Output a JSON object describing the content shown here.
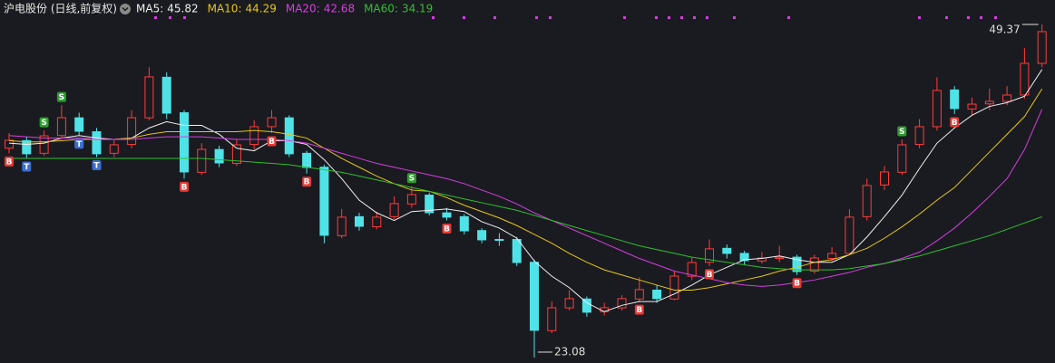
{
  "chart_data": {
    "type": "candlestick",
    "title": "沪电股份 (日线,前复权)",
    "up_color": "#ff3b3b",
    "down_color": "#4fe3e8",
    "ylim": [
      22.65,
      49.87
    ],
    "open": [
      39.6,
      40.2,
      39.2,
      40.6,
      42.0,
      40.9,
      39.2,
      39.9,
      42.0,
      45.2,
      42.4,
      37.7,
      39.5,
      38.4,
      39.9,
      41.3,
      42.0,
      39.2,
      38.1,
      32.7,
      34.2,
      33.4,
      34.2,
      35.2,
      35.9,
      34.5,
      34.2,
      33.1,
      32.4,
      32.4,
      30.6,
      25.2,
      27.0,
      27.7,
      26.7,
      27.0,
      27.7,
      28.4,
      27.7,
      29.5,
      30.6,
      31.7,
      31.3,
      30.7,
      30.9,
      31.0,
      29.9,
      30.9,
      31.3,
      34.2,
      36.7,
      37.7,
      39.9,
      41.3,
      44.2,
      42.7,
      43.1,
      43.3,
      43.8,
      46.3
    ],
    "high": [
      40.8,
      40.5,
      41.0,
      43.0,
      42.4,
      41.2,
      40.3,
      42.6,
      46.0,
      45.6,
      42.6,
      40.0,
      39.8,
      40.3,
      41.8,
      42.6,
      42.2,
      39.4,
      38.3,
      34.8,
      34.5,
      34.6,
      35.8,
      36.6,
      36.1,
      34.9,
      34.4,
      33.3,
      32.9,
      32.6,
      30.8,
      27.5,
      28.4,
      27.9,
      27.4,
      28.0,
      29.4,
      28.8,
      29.9,
      31.0,
      32.4,
      32.0,
      31.5,
      31.4,
      31.9,
      31.2,
      31.2,
      31.8,
      34.8,
      37.2,
      38.2,
      40.3,
      41.9,
      45.2,
      44.5,
      43.6,
      44.3,
      44.5,
      47.5,
      49.37
    ],
    "low": [
      39.2,
      38.8,
      39.0,
      40.3,
      40.6,
      38.9,
      38.9,
      39.6,
      41.8,
      41.9,
      37.2,
      37.5,
      38.1,
      38.2,
      39.5,
      40.8,
      38.9,
      37.6,
      32.1,
      32.5,
      33.1,
      33.2,
      34.0,
      34.9,
      34.3,
      33.9,
      32.8,
      32.1,
      31.9,
      30.3,
      23.08,
      25.0,
      26.8,
      26.3,
      26.4,
      26.8,
      27.5,
      27.4,
      27.6,
      29.2,
      30.3,
      30.9,
      30.4,
      30.5,
      30.6,
      29.6,
      29.7,
      30.7,
      31.2,
      33.9,
      36.3,
      37.5,
      39.6,
      41.0,
      42.3,
      42.2,
      42.6,
      43.0,
      43.5,
      46.0
    ],
    "close": [
      40.23,
      39.16,
      40.58,
      42.01,
      40.94,
      39.16,
      39.87,
      42.01,
      45.23,
      42.37,
      37.73,
      39.51,
      38.44,
      39.87,
      41.3,
      42.01,
      39.16,
      38.08,
      32.73,
      34.16,
      33.44,
      34.16,
      35.23,
      35.94,
      34.51,
      34.16,
      33.08,
      32.37,
      32.37,
      30.58,
      25.23,
      27.01,
      27.73,
      26.66,
      27.01,
      27.73,
      28.44,
      27.73,
      29.51,
      30.58,
      31.66,
      31.3,
      30.73,
      30.94,
      31.0,
      29.87,
      30.94,
      31.3,
      34.16,
      36.66,
      37.73,
      39.87,
      41.3,
      44.16,
      42.73,
      43.08,
      43.3,
      43.8,
      46.3,
      48.8
    ],
    "signals": [
      "B",
      "T",
      "S",
      "S",
      "T",
      "T",
      null,
      null,
      null,
      null,
      "B",
      null,
      null,
      null,
      null,
      "B",
      null,
      "B",
      null,
      null,
      null,
      null,
      null,
      "S",
      null,
      "B",
      null,
      null,
      null,
      null,
      null,
      null,
      null,
      null,
      null,
      null,
      "B",
      null,
      null,
      null,
      "B",
      null,
      null,
      null,
      null,
      "B",
      null,
      null,
      null,
      null,
      null,
      "S",
      null,
      null,
      "B",
      null,
      null,
      null,
      null,
      null
    ],
    "signal_colors": {
      "B": "#e53935",
      "S": "#2e9d2e",
      "T": "#3a6fd1"
    },
    "series": [
      {
        "name": "MA5:",
        "color": "#f0f0f0",
        "values": [
          40.0,
          39.9,
          40.0,
          40.4,
          40.6,
          40.4,
          40.3,
          40.4,
          41.2,
          41.7,
          41.4,
          41.4,
          40.7,
          39.6,
          39.4,
          40.2,
          40.2,
          39.9,
          38.7,
          37.2,
          35.5,
          34.5,
          33.9,
          34.6,
          34.7,
          34.8,
          34.6,
          33.8,
          33.3,
          32.5,
          30.7,
          29.5,
          28.6,
          27.4,
          26.7,
          27.2,
          27.5,
          27.5,
          28.1,
          28.8,
          29.6,
          30.2,
          30.8,
          30.9,
          31.1,
          30.8,
          30.6,
          30.6,
          31.2,
          32.6,
          34.2,
          35.9,
          38.0,
          40.0,
          41.2,
          42.2,
          42.9,
          43.2,
          43.7,
          45.82
        ]
      },
      {
        "name": "MA10:",
        "color": "#e6c619",
        "values": [
          40.2,
          40.1,
          40.1,
          40.2,
          40.3,
          40.3,
          40.3,
          40.4,
          40.7,
          40.9,
          40.9,
          40.9,
          40.9,
          40.9,
          41.0,
          40.9,
          40.7,
          40.4,
          39.6,
          38.8,
          38.1,
          37.4,
          36.8,
          36.3,
          36.2,
          35.7,
          35.1,
          34.6,
          34.1,
          33.5,
          32.8,
          32.1,
          31.3,
          30.6,
          30.0,
          29.6,
          29.2,
          28.8,
          28.4,
          28.4,
          28.6,
          28.9,
          29.2,
          29.5,
          29.9,
          30.2,
          30.6,
          30.8,
          31.2,
          31.7,
          32.5,
          33.4,
          34.4,
          35.5,
          36.5,
          37.9,
          39.3,
          40.7,
          42.1,
          44.29
        ]
      },
      {
        "name": "MA20:",
        "color": "#d63ee0",
        "values": [
          40.6,
          40.5,
          40.4,
          40.4,
          40.4,
          40.3,
          40.3,
          40.3,
          40.4,
          40.5,
          40.5,
          40.5,
          40.4,
          40.3,
          40.3,
          40.3,
          40.2,
          40.0,
          39.6,
          39.2,
          38.8,
          38.4,
          38.1,
          37.8,
          37.5,
          37.2,
          36.8,
          36.3,
          35.8,
          35.2,
          34.5,
          33.9,
          33.3,
          32.7,
          32.1,
          31.5,
          30.9,
          30.4,
          29.9,
          29.6,
          29.3,
          29.0,
          28.8,
          28.7,
          28.8,
          29.0,
          29.2,
          29.5,
          29.8,
          30.2,
          30.5,
          30.9,
          31.4,
          32.3,
          33.3,
          34.5,
          35.8,
          37.2,
          39.5,
          42.68
        ]
      },
      {
        "name": "MA60:",
        "color": "#2fc02f",
        "values": [
          38.8,
          38.8,
          38.8,
          38.8,
          38.8,
          38.8,
          38.8,
          38.8,
          38.8,
          38.8,
          38.8,
          38.8,
          38.7,
          38.6,
          38.5,
          38.4,
          38.3,
          38.1,
          37.9,
          37.7,
          37.4,
          37.1,
          36.8,
          36.5,
          36.2,
          35.9,
          35.6,
          35.3,
          35.0,
          34.7,
          34.3,
          33.9,
          33.5,
          33.1,
          32.7,
          32.3,
          31.9,
          31.6,
          31.3,
          31.0,
          30.8,
          30.6,
          30.4,
          30.2,
          30.1,
          30.0,
          30.0,
          30.0,
          30.1,
          30.3,
          30.5,
          30.8,
          31.1,
          31.5,
          31.9,
          32.3,
          32.7,
          33.2,
          33.7,
          34.19
        ]
      }
    ]
  }
}
